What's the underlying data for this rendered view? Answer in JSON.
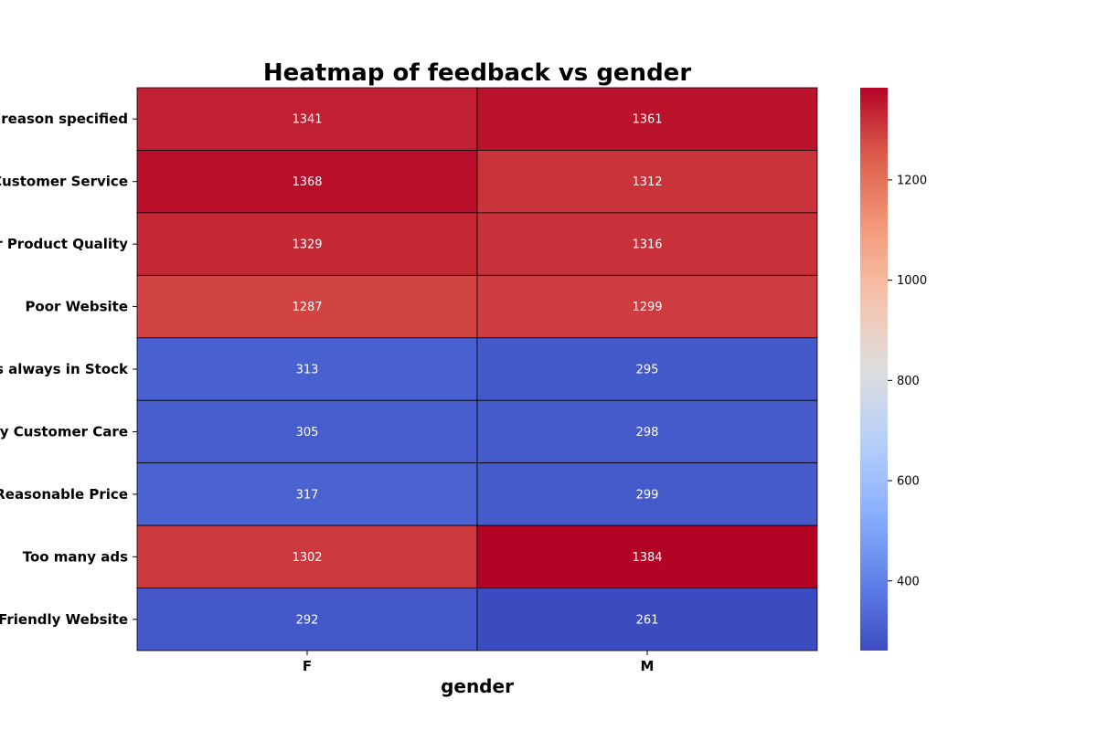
{
  "chart_data": {
    "type": "heatmap",
    "title": "Heatmap of feedback vs gender",
    "xlabel": "gender",
    "ylabel": "",
    "columns": [
      "F",
      "M"
    ],
    "rows": [
      "No reason specified",
      "Poor Customer Service",
      "Poor Product Quality",
      "Poor Website",
      "Products always in Stock",
      "Quality Customer Care",
      "Reasonable Price",
      "Too many ads",
      "User Friendly Website"
    ],
    "values": [
      [
        1341,
        1361
      ],
      [
        1368,
        1312
      ],
      [
        1329,
        1316
      ],
      [
        1287,
        1299
      ],
      [
        313,
        295
      ],
      [
        305,
        298
      ],
      [
        317,
        299
      ],
      [
        1302,
        1384
      ],
      [
        292,
        261
      ]
    ],
    "colormap": "coolwarm",
    "color_range": [
      261,
      1384
    ],
    "colorbar_ticks": [
      400,
      600,
      800,
      1000,
      1200
    ],
    "cell_border_color": "#000000",
    "annotation_color": "#ffffff",
    "grid": false,
    "legend": "colorbar-right"
  }
}
